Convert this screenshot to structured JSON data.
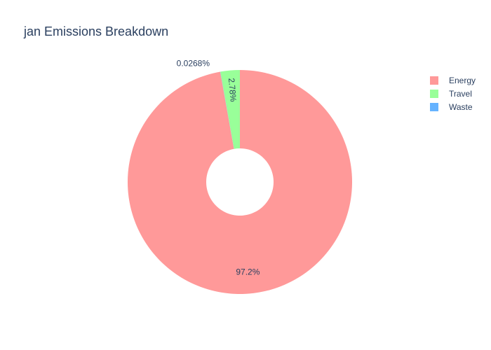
{
  "chart_data": {
    "type": "pie",
    "hole": true,
    "title": "jan Emissions Breakdown",
    "labels": [
      "Energy",
      "Travel",
      "Waste"
    ],
    "values": [
      97.2,
      2.78,
      0.0268
    ],
    "percent_labels": [
      "97.2%",
      "2.78%",
      "0.0268%"
    ],
    "colors": [
      "#ff9999",
      "#99ff99",
      "#66b3ff"
    ],
    "legend_position": "top-right"
  }
}
